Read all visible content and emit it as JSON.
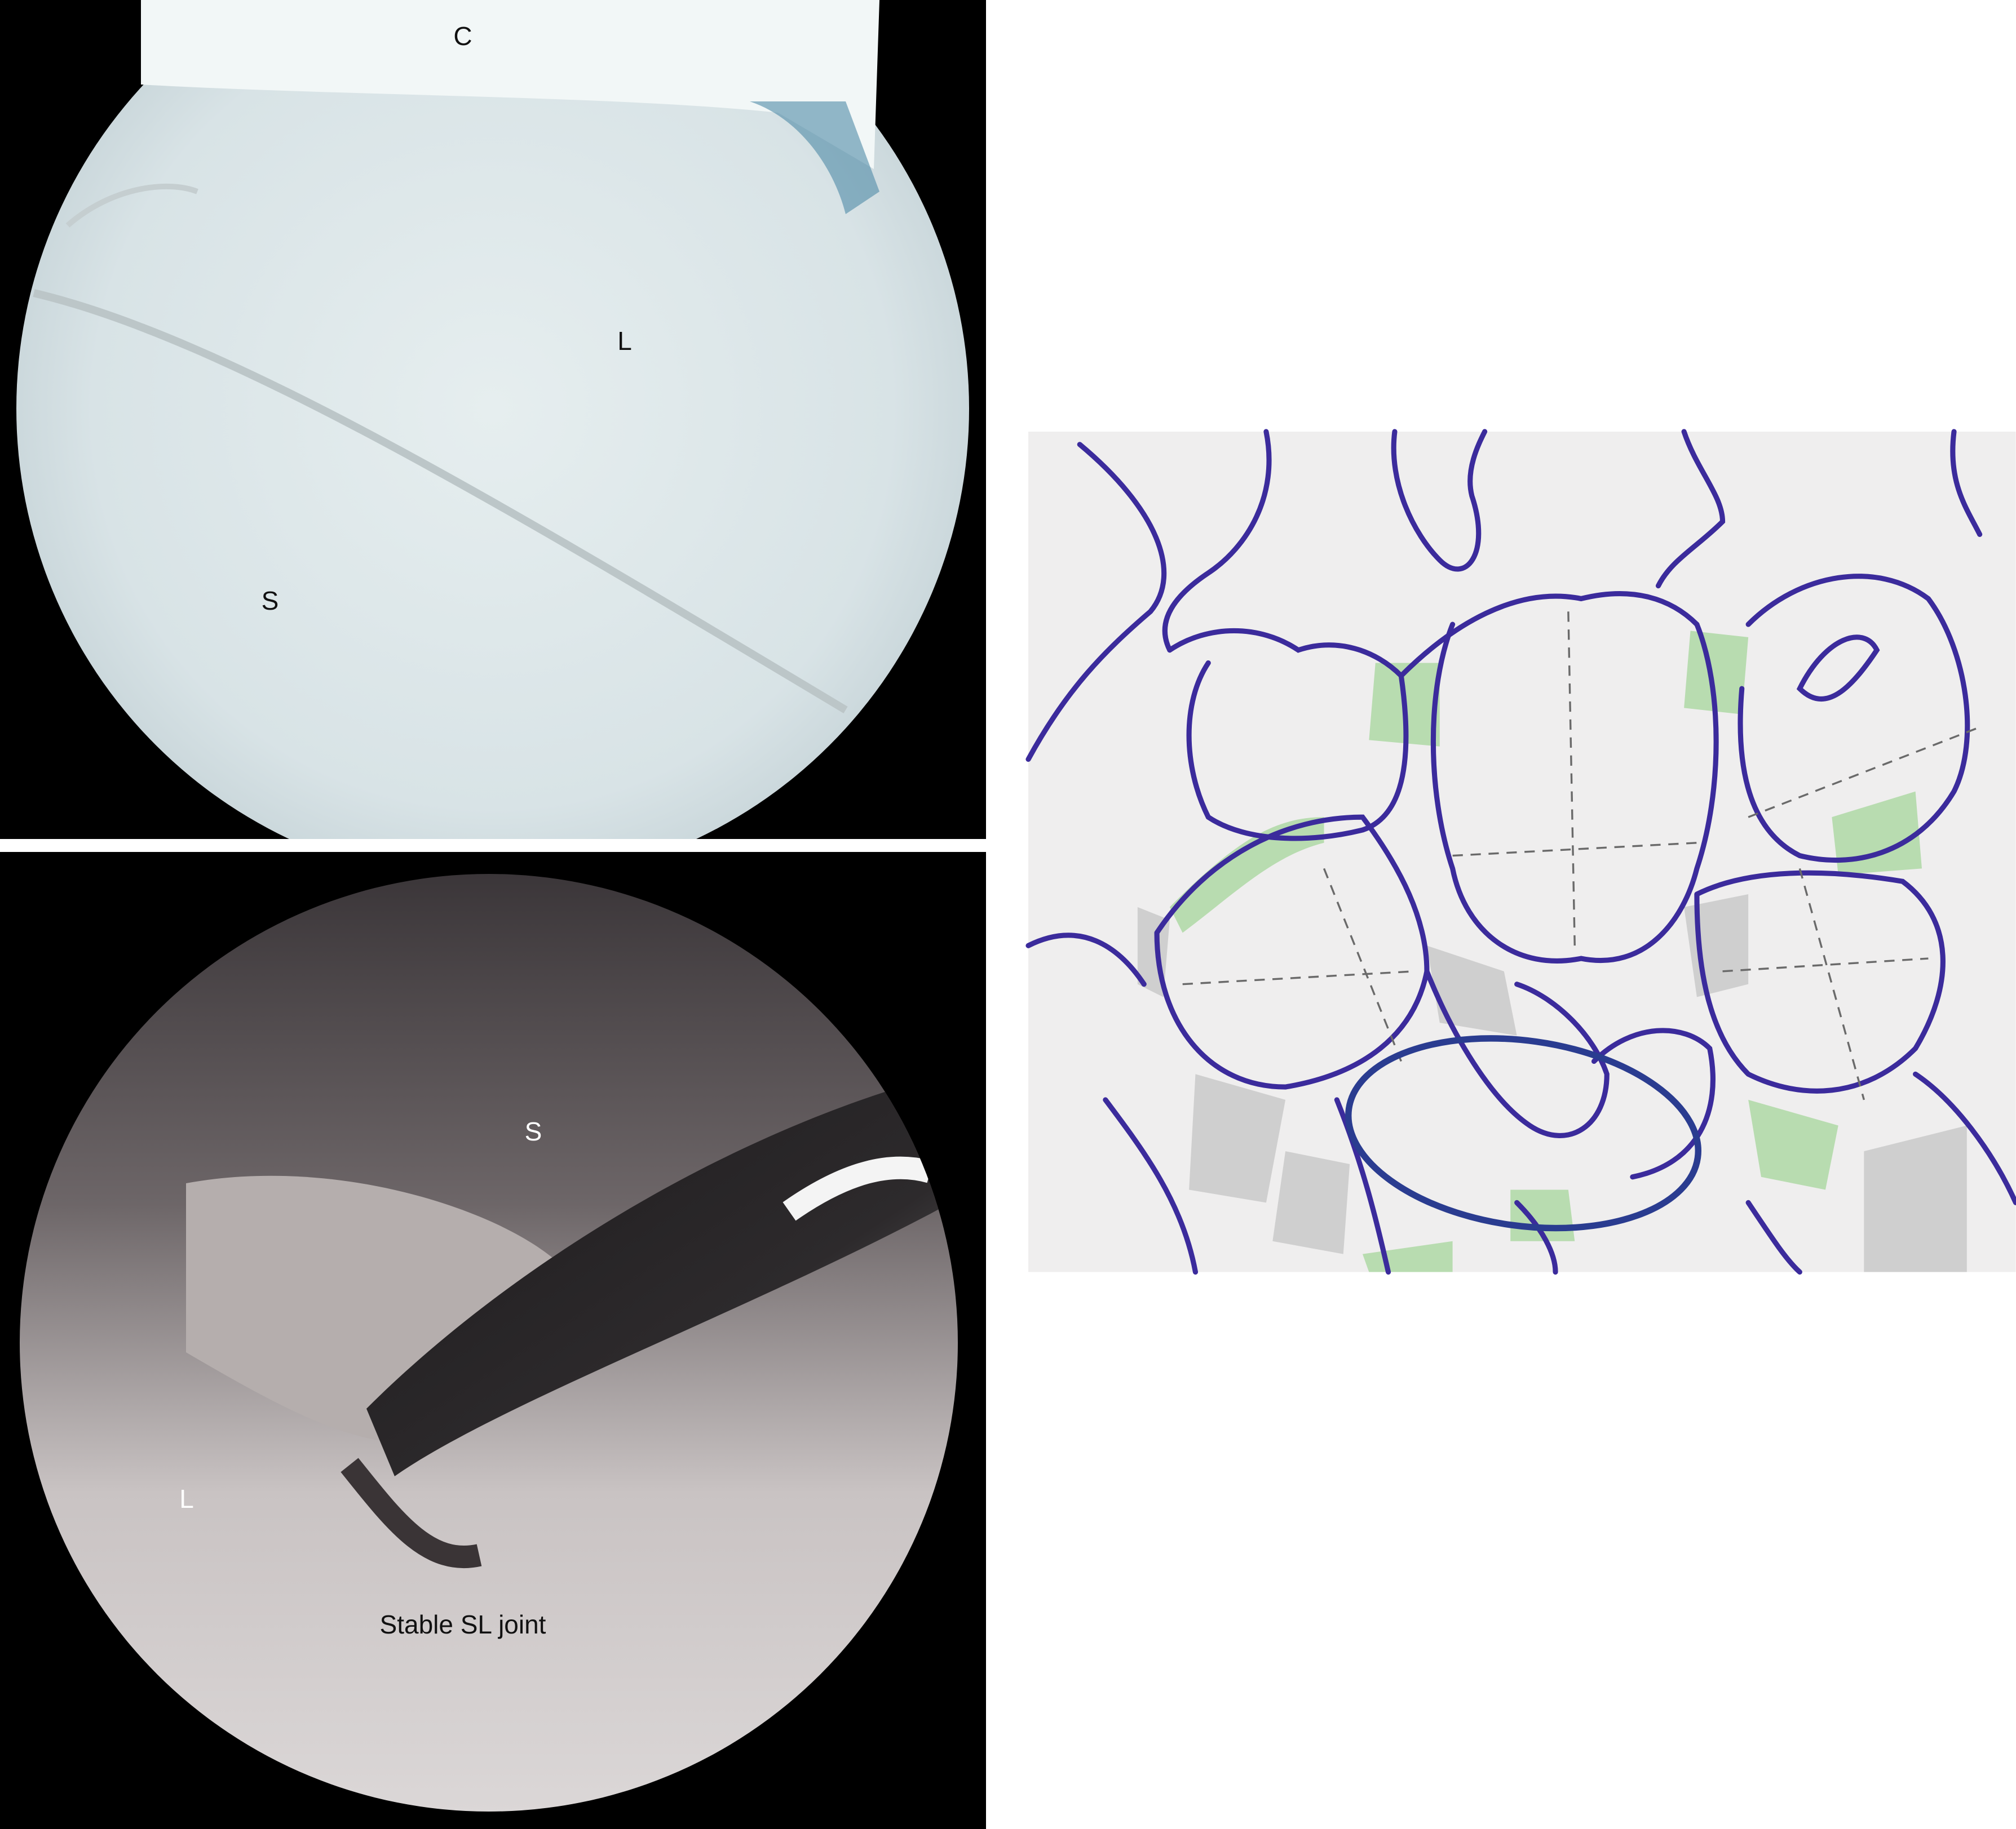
{
  "panels": [
    {
      "labels": [
        "C",
        "L",
        "S"
      ]
    },
    {
      "labels": [
        "S",
        "L",
        "Stable SL joint"
      ]
    }
  ]
}
